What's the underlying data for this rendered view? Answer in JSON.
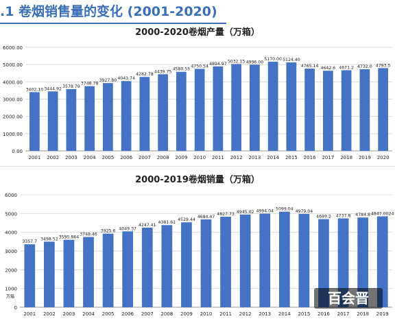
{
  "slide_title": ".1 卷烟销售量的变化 (2001-2020)",
  "watermark": "百会晋",
  "colors": {
    "bar": "#4472c4",
    "title": "#3a6fb7",
    "grid": "#d9d9d9",
    "text": "#222222"
  },
  "chart_data": [
    {
      "type": "bar",
      "title": "2000-2020卷烟产量（万箱）",
      "xlabel": "",
      "ylabel": "",
      "ylim": [
        0,
        6000
      ],
      "yticks": [
        "0.00",
        "1000.00",
        "2000.00",
        "3000.00",
        "4000.00",
        "5000.00",
        "6000.00"
      ],
      "grid": true,
      "categories": [
        "2001",
        "2002",
        "2003",
        "2004",
        "2005",
        "2006",
        "2007",
        "2008",
        "2009",
        "2010",
        "2011",
        "2012",
        "2013",
        "2014",
        "2015",
        "2016",
        "2017",
        "2018",
        "2019",
        "2020"
      ],
      "values": [
        3402.1,
        3444.92,
        3578.79,
        3748.78,
        3927.8,
        4043.74,
        4282.78,
        4439.75,
        4580.55,
        4750.54,
        4894.97,
        5032.15,
        4996.0,
        5170.0,
        5124.4,
        4765.14,
        4642.6,
        4671.2,
        4732.0,
        4793.5
      ],
      "data_labels": [
        "3402.10",
        "3444.92",
        "3578.79",
        "3748.78",
        "3927.80",
        "4043.74",
        "4282.78",
        "4439.75",
        "4580.55",
        "4750.54",
        "4894.97",
        "5032.15",
        "4996.00",
        "5170.00",
        "5124.40",
        "4765.14",
        "4642.6",
        "4671.2",
        "4732.0",
        "4793.5"
      ]
    },
    {
      "type": "bar",
      "title": "2000-2019卷烟销量（万箱）",
      "xlabel": "",
      "ylabel": "万箱",
      "ylim": [
        0,
        6000
      ],
      "yticks": [
        "0",
        "1000",
        "2000",
        "3000",
        "4000",
        "5000",
        "6000"
      ],
      "grid": true,
      "categories": [
        "2001",
        "2002",
        "2003",
        "2004",
        "2005",
        "2006",
        "2007",
        "2008",
        "2009",
        "2010",
        "2011",
        "2012",
        "2013",
        "2014",
        "2015",
        "2016",
        "2017",
        "2018",
        "2019"
      ],
      "values": [
        3357.7,
        3498.52,
        3595.864,
        3748.46,
        3925.6,
        4049.37,
        4247.41,
        4381.61,
        4529.44,
        4684.47,
        4827.73,
        4945.02,
        4994.04,
        5099.04,
        4979.04,
        4699.2,
        4737.8,
        4784.8,
        4847.0024
      ],
      "data_labels": [
        "3357.7",
        "3498.52",
        "3595.864",
        "3748.46",
        "3925.6",
        "4049.37",
        "4247.41",
        "4381.61",
        "4529.44",
        "4684.47",
        "4827.73",
        "4945.02",
        "4994.04",
        "5099.04",
        "4979.04",
        "4699.2",
        "4737.8",
        "4784.8",
        "4847.0024"
      ]
    }
  ]
}
